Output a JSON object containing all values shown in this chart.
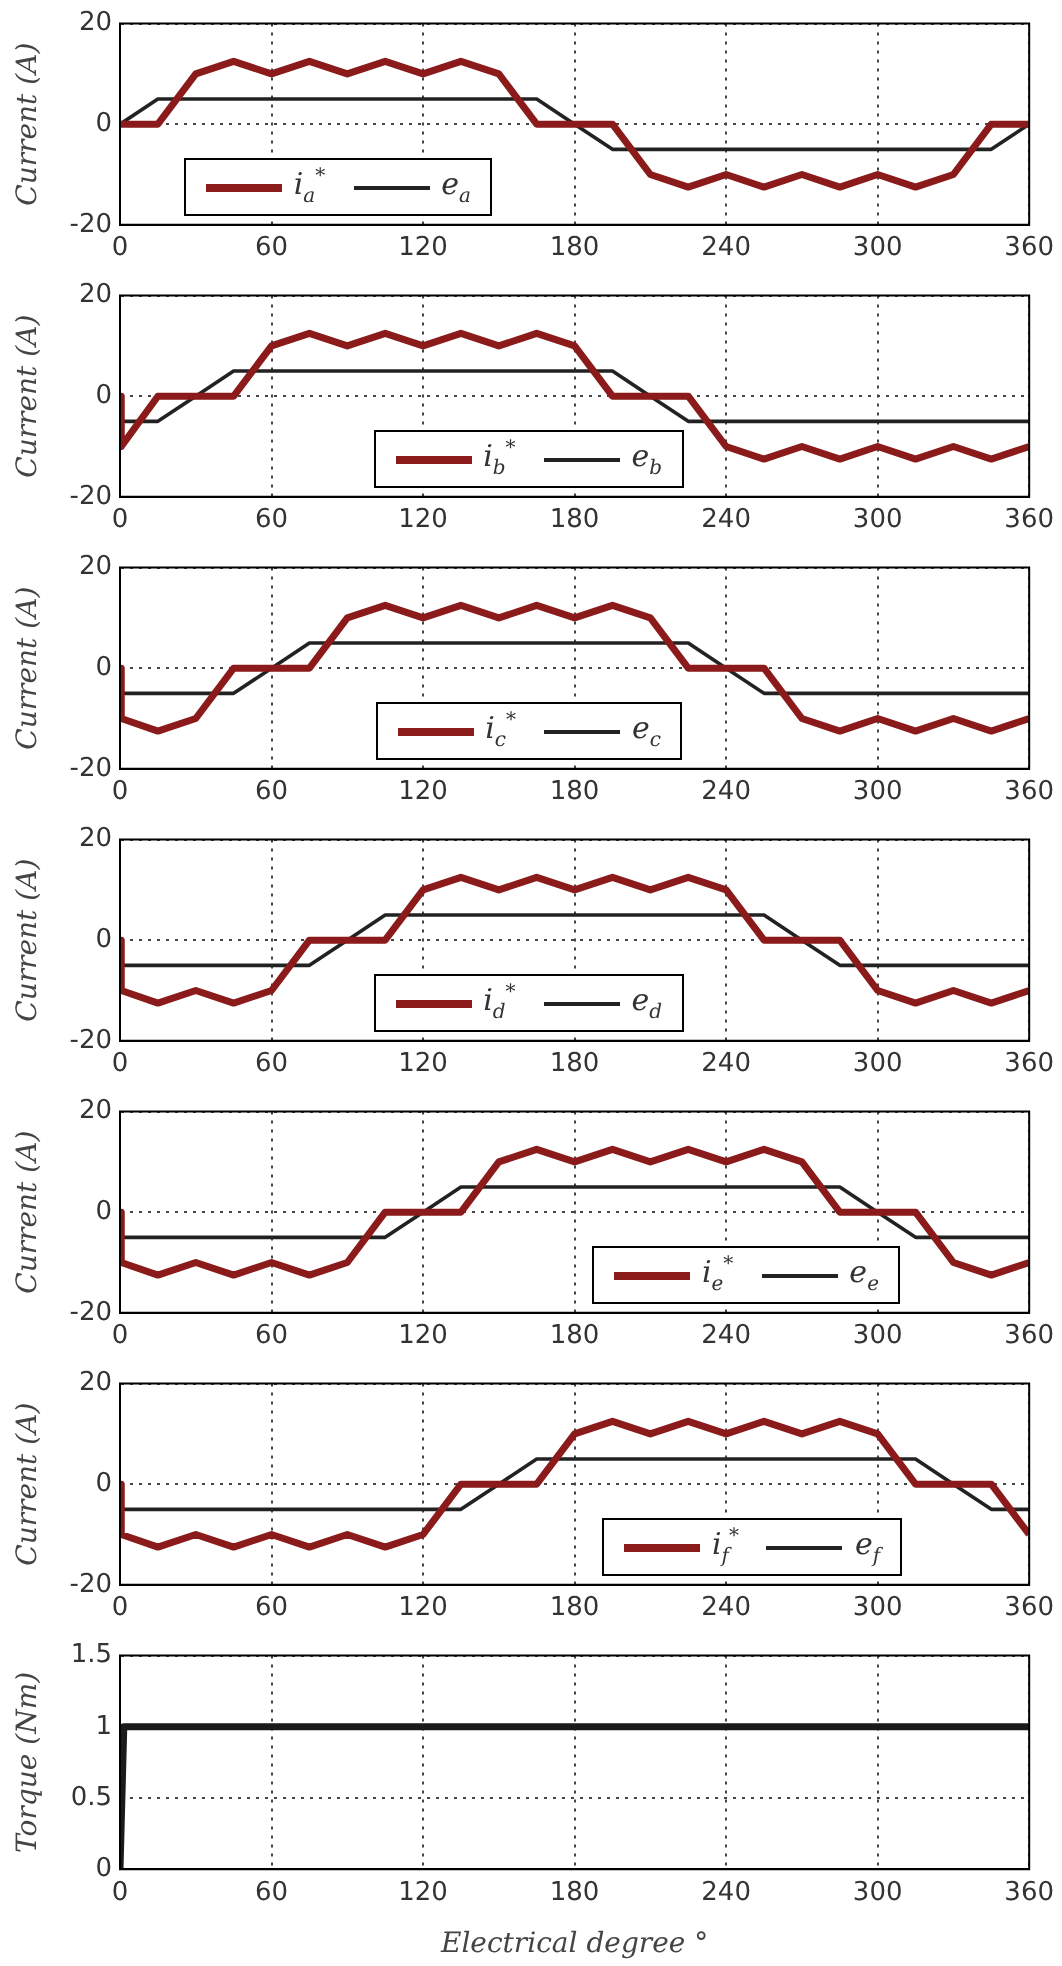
{
  "chart_data": [
    {
      "type": "line",
      "ylabel": "Current (A)",
      "x": [
        0,
        15,
        30,
        45,
        60,
        75,
        90,
        105,
        120,
        135,
        150,
        165,
        180,
        195,
        210,
        225,
        240,
        255,
        270,
        285,
        300,
        315,
        330,
        345,
        360
      ],
      "xlim": [
        0,
        360
      ],
      "xticks": [
        0,
        60,
        120,
        180,
        240,
        300,
        360
      ],
      "ylim": [
        -20,
        20
      ],
      "yticks": [
        -20,
        0,
        20
      ],
      "grid": true,
      "legend": "bottom left",
      "series": [
        {
          "name": "i$_{a}$$^{*}$",
          "color": "#8b1a1a",
          "values": [
            0,
            0,
            10,
            12.5,
            10,
            12.5,
            10,
            12.5,
            10,
            12.5,
            10,
            0,
            0,
            0,
            -10,
            -12.5,
            -10,
            -12.5,
            -10,
            -12.5,
            -10,
            -12.5,
            -10,
            0,
            0
          ]
        },
        {
          "name": "e$_{a}$",
          "color": "#222222",
          "values": [
            0,
            5,
            5,
            5,
            5,
            5,
            5,
            5,
            5,
            5,
            5,
            5,
            0,
            -5,
            -5,
            -5,
            -5,
            -5,
            -5,
            -5,
            -5,
            -5,
            -5,
            -5,
            0
          ]
        }
      ]
    },
    {
      "type": "line",
      "ylabel": "Current (A)",
      "x": [
        0,
        0.5,
        15,
        30,
        45,
        60,
        75,
        90,
        105,
        120,
        135,
        150,
        165,
        180,
        195,
        210,
        225,
        240,
        255,
        270,
        285,
        300,
        315,
        330,
        345,
        360
      ],
      "xlim": [
        0,
        360
      ],
      "xticks": [
        0,
        60,
        120,
        180,
        240,
        300,
        360
      ],
      "ylim": [
        -20,
        20
      ],
      "yticks": [
        -20,
        0,
        20
      ],
      "grid": true,
      "legend": "bottom",
      "series": [
        {
          "name": "i$_{b}$$^{*}$",
          "color": "#8b1a1a",
          "values": [
            0,
            -10,
            0,
            0,
            0,
            10,
            12.5,
            10,
            12.5,
            10,
            12.5,
            10,
            12.5,
            10,
            0,
            0,
            0,
            -10,
            -12.5,
            -10,
            -12.5,
            -10,
            -12.5,
            -10,
            -12.5,
            -10
          ]
        },
        {
          "name": "e$_{b}$",
          "color": "#222222",
          "values": [
            0,
            -5,
            -5,
            0,
            5,
            5,
            5,
            5,
            5,
            5,
            5,
            5,
            5,
            5,
            5,
            0,
            -5,
            -5,
            -5,
            -5,
            -5,
            -5,
            -5,
            -5,
            -5,
            -5
          ]
        }
      ]
    },
    {
      "type": "line",
      "ylabel": "Current (A)",
      "x": [
        0,
        0.5,
        15,
        30,
        45,
        60,
        75,
        90,
        105,
        120,
        135,
        150,
        165,
        180,
        195,
        210,
        225,
        240,
        255,
        270,
        285,
        300,
        315,
        330,
        345,
        360
      ],
      "xlim": [
        0,
        360
      ],
      "xticks": [
        0,
        60,
        120,
        180,
        240,
        300,
        360
      ],
      "ylim": [
        -20,
        20
      ],
      "yticks": [
        -20,
        0,
        20
      ],
      "grid": true,
      "legend": "bottom",
      "series": [
        {
          "name": "i$_{c}$$^{*}$",
          "color": "#8b1a1a",
          "values": [
            0,
            -10,
            -12.5,
            -10,
            0,
            0,
            0,
            10,
            12.5,
            10,
            12.5,
            10,
            12.5,
            10,
            12.5,
            10,
            0,
            0,
            0,
            -10,
            -12.5,
            -10,
            -12.5,
            -10,
            -12.5,
            -10
          ]
        },
        {
          "name": "e$_{c}$",
          "color": "#222222",
          "values": [
            0,
            -5,
            -5,
            -5,
            -5,
            0,
            5,
            5,
            5,
            5,
            5,
            5,
            5,
            5,
            5,
            5,
            5,
            0,
            -5,
            -5,
            -5,
            -5,
            -5,
            -5,
            -5,
            -5
          ]
        }
      ]
    },
    {
      "type": "line",
      "ylabel": "Current (A)",
      "x": [
        0,
        0.5,
        15,
        30,
        45,
        60,
        75,
        90,
        105,
        120,
        135,
        150,
        165,
        180,
        195,
        210,
        225,
        240,
        255,
        270,
        285,
        300,
        315,
        330,
        345,
        360
      ],
      "xlim": [
        0,
        360
      ],
      "xticks": [
        0,
        60,
        120,
        180,
        240,
        300,
        360
      ],
      "ylim": [
        -20,
        20
      ],
      "yticks": [
        -20,
        0,
        20
      ],
      "grid": true,
      "legend": "bottom",
      "series": [
        {
          "name": "i$_{d}$$^{*}$",
          "color": "#8b1a1a",
          "values": [
            0,
            -10,
            -12.5,
            -10,
            -12.5,
            -10,
            0,
            0,
            0,
            10,
            12.5,
            10,
            12.5,
            10,
            12.5,
            10,
            12.5,
            10,
            0,
            0,
            0,
            -10,
            -12.5,
            -10,
            -12.5,
            -10
          ]
        },
        {
          "name": "e$_{d}$",
          "color": "#222222",
          "values": [
            0,
            -5,
            -5,
            -5,
            -5,
            -5,
            -5,
            0,
            5,
            5,
            5,
            5,
            5,
            5,
            5,
            5,
            5,
            5,
            5,
            0,
            -5,
            -5,
            -5,
            -5,
            -5,
            -5
          ]
        }
      ]
    },
    {
      "type": "line",
      "ylabel": "Current (A)",
      "x": [
        0,
        0.5,
        15,
        30,
        45,
        60,
        75,
        90,
        105,
        120,
        135,
        150,
        165,
        180,
        195,
        210,
        225,
        240,
        255,
        270,
        285,
        300,
        315,
        330,
        345,
        360
      ],
      "xlim": [
        0,
        360
      ],
      "xticks": [
        0,
        60,
        120,
        180,
        240,
        300,
        360
      ],
      "ylim": [
        -20,
        20
      ],
      "yticks": [
        -20,
        0,
        20
      ],
      "grid": true,
      "legend": "bottom right",
      "series": [
        {
          "name": "i$_{e}$$^{*}$",
          "color": "#8b1a1a",
          "values": [
            0,
            -10,
            -12.5,
            -10,
            -12.5,
            -10,
            -12.5,
            -10,
            0,
            0,
            0,
            10,
            12.5,
            10,
            12.5,
            10,
            12.5,
            10,
            12.5,
            10,
            0,
            0,
            0,
            -10,
            -12.5,
            -10
          ]
        },
        {
          "name": "e$_{e}$",
          "color": "#222222",
          "values": [
            0,
            -5,
            -5,
            -5,
            -5,
            -5,
            -5,
            -5,
            -5,
            0,
            5,
            5,
            5,
            5,
            5,
            5,
            5,
            5,
            5,
            5,
            5,
            0,
            -5,
            -5,
            -5,
            -5
          ]
        }
      ]
    },
    {
      "type": "line",
      "ylabel": "Current (A)",
      "x": [
        0,
        0.5,
        15,
        30,
        45,
        60,
        75,
        90,
        105,
        120,
        135,
        150,
        165,
        180,
        195,
        210,
        225,
        240,
        255,
        270,
        285,
        300,
        315,
        330,
        345,
        360
      ],
      "xlim": [
        0,
        360
      ],
      "xticks": [
        0,
        60,
        120,
        180,
        240,
        300,
        360
      ],
      "ylim": [
        -20,
        20
      ],
      "yticks": [
        -20,
        0,
        20
      ],
      "grid": true,
      "legend": "bottom right",
      "series": [
        {
          "name": "i$_{f}$$^{*}$",
          "color": "#8b1a1a",
          "values": [
            0,
            -10,
            -12.5,
            -10,
            -12.5,
            -10,
            -12.5,
            -10,
            -12.5,
            -10,
            0,
            0,
            0,
            10,
            12.5,
            10,
            12.5,
            10,
            12.5,
            10,
            12.5,
            10,
            0,
            0,
            0,
            -10
          ]
        },
        {
          "name": "e$_{f}$",
          "color": "#222222",
          "values": [
            0,
            -5,
            -5,
            -5,
            -5,
            -5,
            -5,
            -5,
            -5,
            -5,
            -5,
            0,
            5,
            5,
            5,
            5,
            5,
            5,
            5,
            5,
            5,
            5,
            5,
            0,
            -5,
            -5
          ]
        }
      ]
    },
    {
      "type": "line",
      "ylabel": "Torque (Nm)",
      "xlabel": "Electrical degree °",
      "x": [
        0,
        1.5,
        360
      ],
      "xlim": [
        0,
        360
      ],
      "xticks": [
        0,
        60,
        120,
        180,
        240,
        300,
        360
      ],
      "ylim": [
        0,
        1.5
      ],
      "yticks": [
        0,
        0.5,
        1,
        1.5
      ],
      "grid": true,
      "series": [
        {
          "color": "#1a1a1a",
          "values": [
            0,
            1,
            1
          ]
        }
      ]
    }
  ]
}
